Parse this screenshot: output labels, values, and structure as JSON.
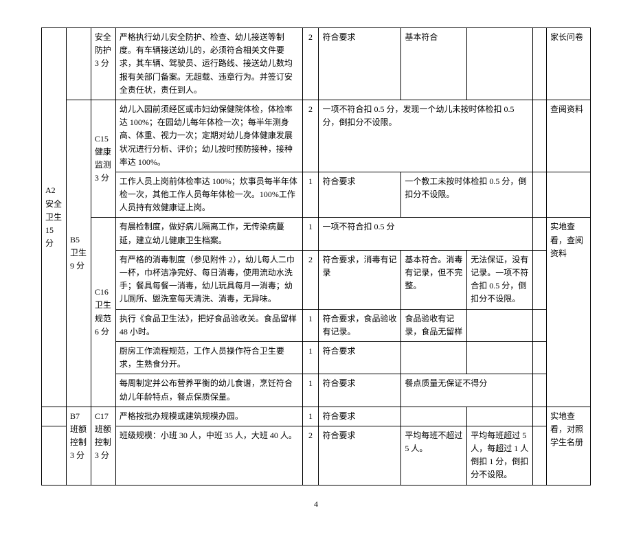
{
  "page_number": "4",
  "colA": {
    "a2": "A2\n安全\n卫生\n15 分"
  },
  "colB": {
    "b5": "B5\n卫生\n9 分",
    "b7": "B7\n班额\n控制\n3 分"
  },
  "colC": {
    "safety_protect": "安全\n防护\n3 分",
    "c15": "C15\n健康\n监测\n3 分",
    "c16": "C16\n卫生\n规范\n6 分",
    "c17": "C17\n班额\n控制\n3 分"
  },
  "rows": {
    "r1": {
      "desc": "严格执行幼儿安全防护、检查、幼儿接送等制度。有车辆接送幼儿的，必须符合相关文件要求，其车辆、驾驶员、运行路线、接送幼儿数均报有关部门备案。无超载、违章行为。并签订安全责任状，责任到人。",
      "score": "2",
      "s1": "符合要求",
      "s2": "基本符合",
      "s3": "",
      "s4": "",
      "method": "家长问卷"
    },
    "r2": {
      "desc": "幼儿入园前须经区或市妇幼保健院体检，体检率达 100%；在园幼儿每年体检一次；每半年测身高、体重、视力一次；定期对幼儿身体健康发展状况进行分析、评价；幼儿按时预防接种，接种率达 100%。",
      "score": "2",
      "s1_merged": "一项不符合扣 0.5 分，发现一个幼儿未按时体检扣 0.5 分，倒扣分不设限。",
      "method": "查阅资料"
    },
    "r3": {
      "desc": "工作人员上岗前体检率达 100%；炊事员每半年体检一次，其他工作人员每年体检一次。100%工作人员持有效健康证上岗。",
      "score": "1",
      "s1": "符合要求",
      "s2_merged": "一个教工未按时体检扣 0.5 分，倒扣分不设限。"
    },
    "r4": {
      "desc": "有晨检制度，做好病儿隔离工作，无传染病蔓延，建立幼儿健康卫生档案。",
      "score": "1",
      "s1_merged": "一项不符合扣 0.5 分",
      "method": "实地查看，查阅资料"
    },
    "r5": {
      "desc": "有严格的消毒制度（参见附件 2），幼儿每人二巾一杯，巾杯洁净完好、每日消毒，使用流动水洗手；餐具每餐一消毒，幼儿玩具每月一消毒；幼儿厕所、盥洗室每天清洗、消毒，无异味。",
      "score": "2",
      "s1": "符合要求，消毒有记录",
      "s2": "基本符合。消毒有记录，但不完整。",
      "s3": "无法保证，没有记录。一项不符合扣 0.5 分，倒扣分不设限。"
    },
    "r6": {
      "desc": "执行《食品卫生法》，把好食品验收关。食品留样 48 小时。",
      "score": "1",
      "s1": "符合要求，食品验收有记录。",
      "s2": "食品验收有记录，食品无留样"
    },
    "r7": {
      "desc": "厨房工作流程规范，工作人员操作符合卫生要求，生熟食分开。",
      "score": "1",
      "s1": "符合要求"
    },
    "r8": {
      "desc": "每周制定并公布营养平衡的幼儿食谱，烹饪符合幼儿年龄特点，餐点保质保量。",
      "score": "1",
      "s1": "符合要求",
      "s2_merged": "餐点质量无保证不得分"
    },
    "r9": {
      "desc": "严格按批办规模或建筑规模办园。",
      "score": "1",
      "s1": "符合要求",
      "method": "实地查看，对照学生名册"
    },
    "r10": {
      "desc": "班级规模：小班 30 人，中班 35 人，大班 40 人。",
      "score": "2",
      "s1": "符合要求",
      "s2": "平均每班不超过 5 人。",
      "s3": "平均每班超过 5 人，每超过 1 人倒扣 1 分，倒扣分不设限。"
    }
  }
}
